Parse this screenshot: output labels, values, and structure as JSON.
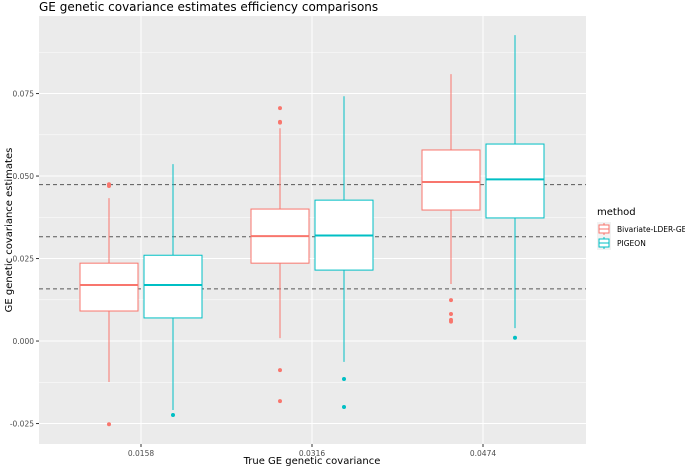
{
  "chart_data": {
    "type": "boxplot",
    "title": "GE genetic covariance estimates efficiency comparisons",
    "xlabel": "True GE genetic covariance",
    "ylabel": "GE genetic covariance estimates",
    "categories": [
      "0.0158",
      "0.0316",
      "0.0474"
    ],
    "yticks": [
      "-0.025",
      "0.000",
      "0.025",
      "0.050",
      "0.075"
    ],
    "ylim": [
      -0.0312,
      0.0985
    ],
    "grid": true,
    "reference_lines": [
      0.0158,
      0.0316,
      0.0474
    ],
    "legend": {
      "title": "method",
      "position": "right"
    },
    "series": [
      {
        "name": "Bivariate-LDER-GE",
        "color": "#F8766D",
        "boxes": [
          {
            "lower": -0.0124,
            "q1": 0.0091,
            "median": 0.017,
            "q3": 0.0236,
            "upper": 0.0433,
            "outliers": [
              0.0475,
              0.047,
              -0.0252
            ]
          },
          {
            "lower": 0.0009,
            "q1": 0.0236,
            "median": 0.0318,
            "q3": 0.04,
            "upper": 0.0645,
            "outliers": [
              0.0706,
              0.0664,
              0.0662,
              -0.0088,
              -0.0182
            ]
          },
          {
            "lower": 0.0173,
            "q1": 0.0397,
            "median": 0.0482,
            "q3": 0.0579,
            "upper": 0.0809,
            "outliers": [
              0.0124,
              0.0082,
              0.0064,
              0.0059
            ]
          }
        ]
      },
      {
        "name": "PIGEON",
        "color": "#00BFC4",
        "boxes": [
          {
            "lower": -0.0209,
            "q1": 0.007,
            "median": 0.017,
            "q3": 0.026,
            "upper": 0.0536,
            "outliers": [
              -0.0224
            ]
          },
          {
            "lower": -0.0063,
            "q1": 0.0215,
            "median": 0.032,
            "q3": 0.0427,
            "upper": 0.0742,
            "outliers": [
              -0.0115,
              -0.02
            ]
          },
          {
            "lower": 0.0039,
            "q1": 0.0373,
            "median": 0.049,
            "q3": 0.0597,
            "upper": 0.0927,
            "outliers": [
              0.001
            ]
          }
        ]
      }
    ]
  }
}
